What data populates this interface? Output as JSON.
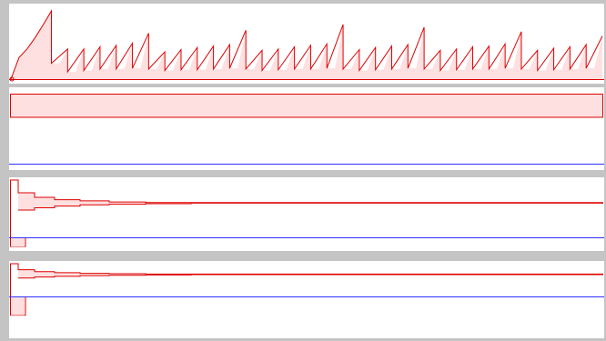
{
  "colors": {
    "background": "#c4c4c4",
    "panel_background": "#ffffff",
    "waveform_stroke": "#dd0000",
    "waveform_fill": "#ffe0e0",
    "baseline": "#3030ff"
  },
  "chart_data": [
    {
      "type": "line",
      "description_key": "sawtooth-waveform",
      "series": [
        {
          "values": [
            0.0,
            0.3,
            0.42,
            0.58,
            0.76,
            0.95,
            0.22,
            0.42,
            0.1,
            0.42,
            0.12,
            0.45,
            0.14,
            0.47,
            0.14,
            0.5,
            0.15,
            0.64,
            0.14,
            0.38,
            0.12,
            0.41,
            0.13,
            0.44,
            0.13,
            0.46,
            0.14,
            0.48,
            0.15,
            0.68,
            0.14,
            0.4,
            0.12,
            0.42,
            0.13,
            0.45,
            0.14,
            0.47,
            0.14,
            0.49,
            0.15,
            0.76,
            0.14,
            0.41,
            0.12,
            0.44,
            0.13,
            0.46,
            0.14,
            0.48,
            0.15,
            0.72,
            0.14,
            0.4,
            0.12,
            0.42,
            0.13,
            0.45,
            0.14,
            0.46,
            0.14,
            0.49,
            0.15,
            0.66,
            0.14,
            0.4,
            0.12,
            0.43,
            0.13,
            0.45,
            0.14,
            0.48,
            0.15,
            0.6
          ]
        }
      ]
    },
    {
      "type": "line",
      "description_key": "flat-level",
      "series": [
        {
          "values": [
            0.95,
            0.95
          ]
        }
      ],
      "band_fraction": 0.28,
      "baseline_fraction": 0.92
    },
    {
      "type": "line",
      "description_key": "decaying-steps",
      "upper": [
        1.0,
        0.78,
        0.7,
        0.66,
        0.64,
        0.62,
        0.61,
        0.61
      ],
      "lower": [
        1.0,
        0.48,
        0.52,
        0.55,
        0.57,
        0.58,
        0.59,
        0.6
      ],
      "dip": -0.15,
      "baseline_fraction": 0.82
    },
    {
      "type": "line",
      "description_key": "decaying-steps-negative",
      "upper": [
        1.0,
        0.82,
        0.76,
        0.73,
        0.71,
        0.7,
        0.69,
        0.69
      ],
      "lower": [
        1.0,
        0.57,
        0.6,
        0.62,
        0.64,
        0.65,
        0.66,
        0.67
      ],
      "dip": -0.55,
      "baseline_fraction": 0.46
    }
  ]
}
